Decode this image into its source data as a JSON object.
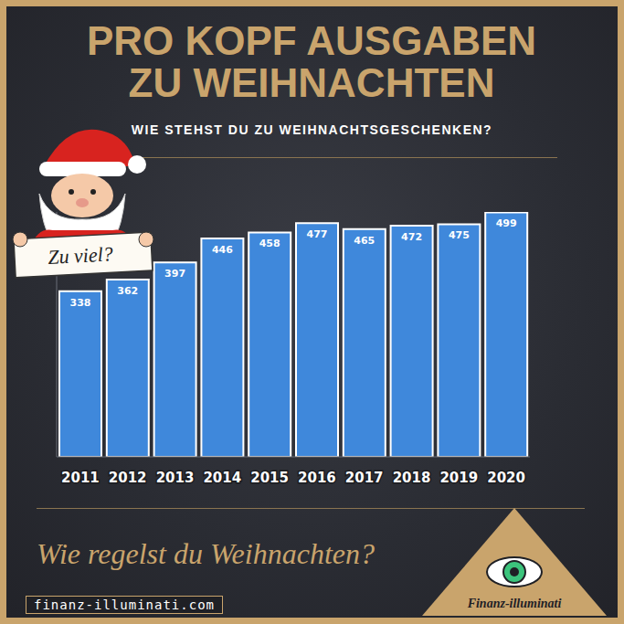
{
  "chart_data": {
    "type": "bar",
    "title": "PRO KOPF AUSGABEN ZU WEIHNACHTEN",
    "subtitle": "WIE STEHST DU ZU WEIHNACHTSGESCHENKEN?",
    "categories": [
      "2011",
      "2012",
      "2013",
      "2014",
      "2015",
      "2016",
      "2017",
      "2018",
      "2019",
      "2020"
    ],
    "values": [
      338,
      362,
      397,
      446,
      458,
      477,
      465,
      472,
      475,
      499
    ],
    "color": "#3f88db",
    "ylim": [
      0,
      500
    ],
    "data_labels": true,
    "tick_labels": "x",
    "annotations": [
      "Zu viel?",
      "Wie regelst du Weihnachten?",
      "finanz-illuminati.com",
      "Finanz-illuminati"
    ]
  }
}
